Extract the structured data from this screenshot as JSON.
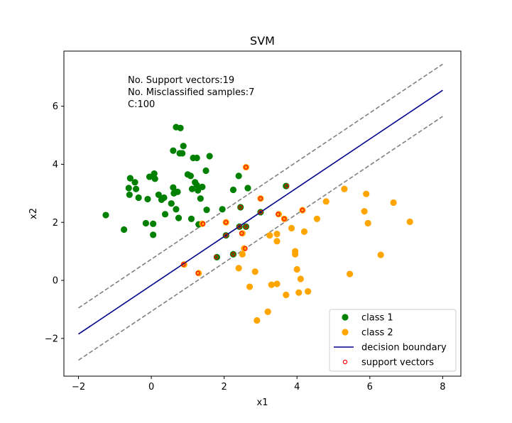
{
  "chart_data": {
    "type": "scatter",
    "title": "SVM",
    "xlabel": "x1",
    "ylabel": "x2",
    "xlim": [
      -2.4,
      8.5
    ],
    "ylim": [
      -3.3,
      7.9
    ],
    "xticks": [
      -2,
      0,
      2,
      4,
      6,
      8
    ],
    "yticks": [
      -2,
      0,
      2,
      4,
      6
    ],
    "grid": false,
    "legend_position": "bottom-right",
    "annotations": [
      "No. Support vectors:19",
      "No. Misclassified samples:7",
      "C:100"
    ],
    "series": [
      {
        "name": "class 1",
        "kind": "scatter",
        "color": "#008000",
        "points": [
          [
            -1.25,
            2.25
          ],
          [
            -0.75,
            1.75
          ],
          [
            -0.62,
            3.18
          ],
          [
            -0.58,
            3.52
          ],
          [
            -0.6,
            2.95
          ],
          [
            -0.45,
            3.38
          ],
          [
            -0.42,
            3.15
          ],
          [
            -0.35,
            2.85
          ],
          [
            -0.15,
            1.97
          ],
          [
            -0.1,
            2.8
          ],
          [
            -0.05,
            3.57
          ],
          [
            0.05,
            1.57
          ],
          [
            0.05,
            1.95
          ],
          [
            0.08,
            3.68
          ],
          [
            0.1,
            3.5
          ],
          [
            0.2,
            2.95
          ],
          [
            0.28,
            2.78
          ],
          [
            0.35,
            2.85
          ],
          [
            0.38,
            2.28
          ],
          [
            0.55,
            2.65
          ],
          [
            0.6,
            3.2
          ],
          [
            0.6,
            4.47
          ],
          [
            0.62,
            3.0
          ],
          [
            0.68,
            5.28
          ],
          [
            0.68,
            2.45
          ],
          [
            0.72,
            3.05
          ],
          [
            0.75,
            2.15
          ],
          [
            0.78,
            4.38
          ],
          [
            0.8,
            5.25
          ],
          [
            0.85,
            4.38
          ],
          [
            0.88,
            4.63
          ],
          [
            1.0,
            3.65
          ],
          [
            1.08,
            3.6
          ],
          [
            1.1,
            2.12
          ],
          [
            1.12,
            3.15
          ],
          [
            1.15,
            4.22
          ],
          [
            1.2,
            3.38
          ],
          [
            1.25,
            4.22
          ],
          [
            1.25,
            3.28
          ],
          [
            1.28,
            3.1
          ],
          [
            1.3,
            1.93
          ],
          [
            1.35,
            2.82
          ],
          [
            1.4,
            3.22
          ],
          [
            1.5,
            3.78
          ],
          [
            1.52,
            2.43
          ],
          [
            1.6,
            4.28
          ],
          [
            1.8,
            0.8
          ],
          [
            1.95,
            2.45
          ],
          [
            2.05,
            1.55
          ],
          [
            2.25,
            3.12
          ],
          [
            2.25,
            0.9
          ],
          [
            2.4,
            3.6
          ],
          [
            2.42,
            1.85
          ],
          [
            2.45,
            2.52
          ],
          [
            2.6,
            1.85
          ],
          [
            2.65,
            3.18
          ],
          [
            3.0,
            2.35
          ],
          [
            3.7,
            3.25
          ]
        ]
      },
      {
        "name": "class 2",
        "kind": "scatter",
        "color": "#ffa500",
        "points": [
          [
            0.9,
            0.55
          ],
          [
            1.3,
            0.25
          ],
          [
            1.4,
            1.95
          ],
          [
            2.05,
            2.0
          ],
          [
            2.4,
            0.42
          ],
          [
            2.5,
            0.9
          ],
          [
            2.5,
            1.62
          ],
          [
            2.55,
            1.1
          ],
          [
            2.6,
            3.9
          ],
          [
            2.7,
            -0.22
          ],
          [
            2.85,
            0.3
          ],
          [
            2.9,
            -1.38
          ],
          [
            3.0,
            2.82
          ],
          [
            3.2,
            -1.08
          ],
          [
            3.25,
            1.55
          ],
          [
            3.3,
            -0.15
          ],
          [
            3.45,
            -0.12
          ],
          [
            3.45,
            1.6
          ],
          [
            3.45,
            1.35
          ],
          [
            3.5,
            2.28
          ],
          [
            3.65,
            2.12
          ],
          [
            3.7,
            -0.5
          ],
          [
            3.85,
            1.8
          ],
          [
            3.95,
            1.0
          ],
          [
            3.95,
            0.9
          ],
          [
            4.0,
            0.38
          ],
          [
            4.05,
            -0.42
          ],
          [
            4.1,
            0.05
          ],
          [
            4.15,
            2.42
          ],
          [
            4.2,
            1.68
          ],
          [
            4.3,
            -0.38
          ],
          [
            4.55,
            2.12
          ],
          [
            4.8,
            2.72
          ],
          [
            5.3,
            3.15
          ],
          [
            5.45,
            0.22
          ],
          [
            5.85,
            2.38
          ],
          [
            5.9,
            2.98
          ],
          [
            5.95,
            1.97
          ],
          [
            6.3,
            0.88
          ],
          [
            6.65,
            2.68
          ],
          [
            7.1,
            2.02
          ]
        ]
      },
      {
        "name": "decision boundary",
        "kind": "line",
        "color": "#00008b",
        "points": [
          [
            -2,
            -1.85
          ],
          [
            8,
            6.55
          ]
        ]
      },
      {
        "name": "margin-upper",
        "kind": "line",
        "style": "dashed",
        "color": "#808080",
        "points": [
          [
            -2,
            -0.95
          ],
          [
            8,
            7.45
          ]
        ]
      },
      {
        "name": "margin-lower",
        "kind": "line",
        "style": "dashed",
        "color": "#808080",
        "points": [
          [
            -2,
            -2.75
          ],
          [
            8,
            5.65
          ]
        ]
      },
      {
        "name": "support vectors",
        "kind": "scatter-hollow",
        "color": "#ff0000",
        "points": [
          [
            0.88,
            0.55
          ],
          [
            1.28,
            0.25
          ],
          [
            1.42,
            1.95
          ],
          [
            2.05,
            2.0
          ],
          [
            2.6,
            3.9
          ],
          [
            2.45,
            2.52
          ],
          [
            2.48,
            1.62
          ],
          [
            2.58,
            1.1
          ],
          [
            3.0,
            2.82
          ],
          [
            3.48,
            2.28
          ],
          [
            3.65,
            2.12
          ],
          [
            4.15,
            2.42
          ],
          [
            3.0,
            2.35
          ],
          [
            3.72,
            3.25
          ],
          [
            2.05,
            1.55
          ],
          [
            1.78,
            0.8
          ],
          [
            2.25,
            0.9
          ],
          [
            2.42,
            1.85
          ],
          [
            2.6,
            1.85
          ]
        ]
      }
    ],
    "legend": [
      "class 1",
      "class 2",
      "decision boundary",
      "support vectors"
    ]
  }
}
